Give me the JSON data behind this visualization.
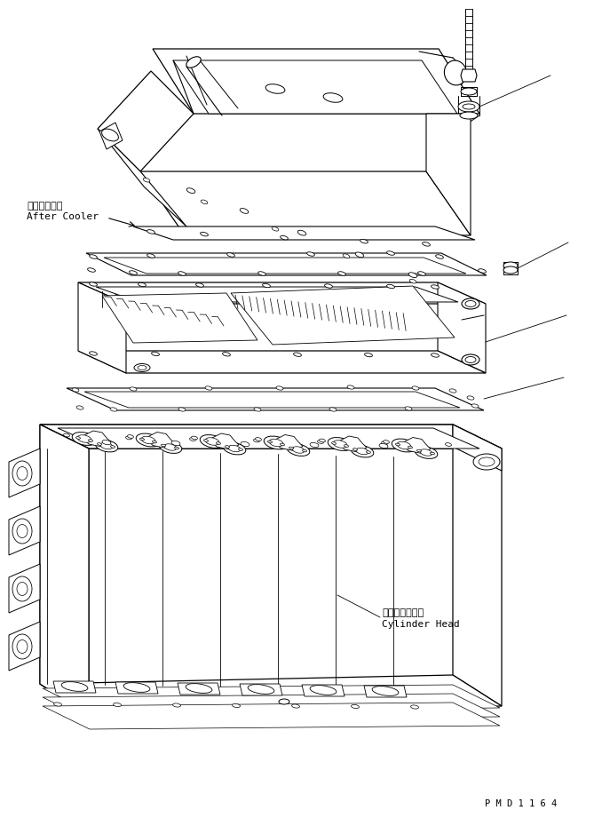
{
  "background_color": "#ffffff",
  "line_color": "#000000",
  "label_after_cooler_jp": "アフタクーラ",
  "label_after_cooler_en": "After Cooler",
  "label_cylinder_head_jp": "シリンダヘッド",
  "label_cylinder_head_en": "Cylinder Head",
  "part_number": "P M D 1 1 6 4",
  "figsize": [
    6.69,
    9.21
  ],
  "dpi": 100
}
